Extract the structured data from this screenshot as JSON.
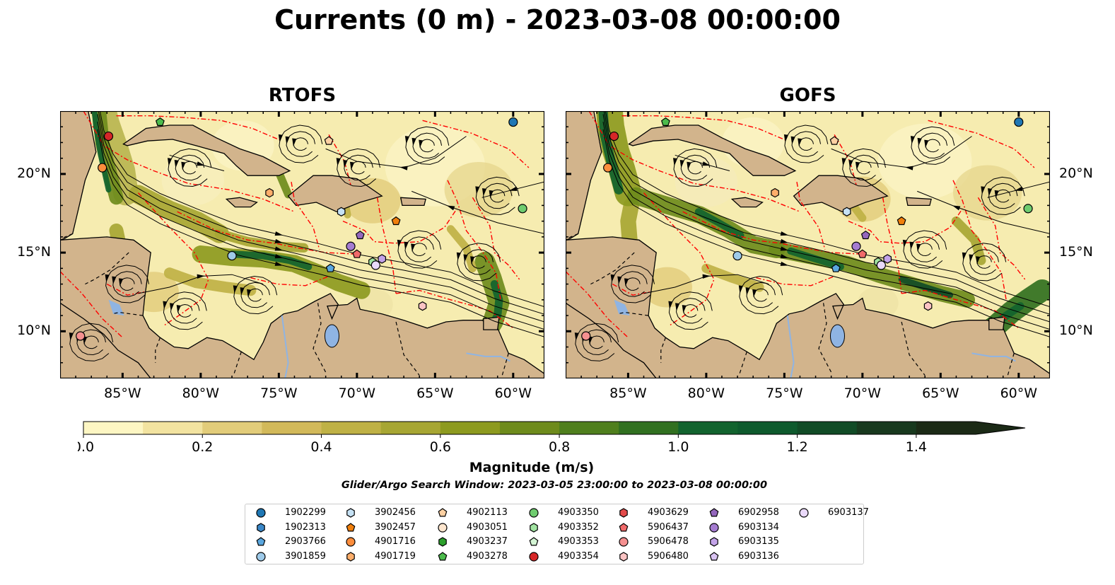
{
  "title": "Currents (0 m) - 2023-03-08 00:00:00",
  "panels": [
    {
      "title": "RTOFS"
    },
    {
      "title": "GOFS"
    }
  ],
  "map": {
    "lon_range": [
      -89,
      -58
    ],
    "lat_range": [
      7,
      24
    ],
    "lon_ticks": [
      {
        "value": -85,
        "label": "85°W"
      },
      {
        "value": -80,
        "label": "80°W"
      },
      {
        "value": -75,
        "label": "75°W"
      },
      {
        "value": -70,
        "label": "70°W"
      },
      {
        "value": -65,
        "label": "65°W"
      },
      {
        "value": -60,
        "label": "60°W"
      }
    ],
    "lat_ticks": [
      {
        "value": 20,
        "label": "20°N"
      },
      {
        "value": 15,
        "label": "15°N"
      },
      {
        "value": 10,
        "label": "10°N"
      }
    ],
    "colors": {
      "land": "#d2b48c",
      "eez": "#ff0000",
      "lake": "#8fb4e3",
      "water_low": "#fbf4c0",
      "water_high": "#1f3b17"
    }
  },
  "colorbar": {
    "label": "Magnitude (m/s)",
    "min": 0.0,
    "max": 1.5,
    "extend": "max",
    "tick_labels": [
      "0.0",
      "0.2",
      "0.4",
      "0.6",
      "0.8",
      "1.0",
      "1.2",
      "1.4"
    ],
    "tick_values": [
      0.0,
      0.2,
      0.4,
      0.6,
      0.8,
      1.0,
      1.2,
      1.4
    ],
    "colors": [
      "#fdf6c3",
      "#f2e3a0",
      "#e2cc7a",
      "#d2b95a",
      "#bfb145",
      "#a7a633",
      "#8d9a1f",
      "#6e8b1c",
      "#4f7f1d",
      "#317020",
      "#12632e",
      "#0e5a2d",
      "#114b26",
      "#18391e",
      "#1b2a16"
    ]
  },
  "search_window": "Glider/Argo Search Window: 2023-03-05 23:00:00 to 2023-03-08 00:00:00",
  "legend": [
    {
      "label": "1902299",
      "marker": "circle",
      "color": "#1f77b4"
    },
    {
      "label": "1902313",
      "marker": "hexagon",
      "color": "#3a87c8"
    },
    {
      "label": "2903766",
      "marker": "pentagon",
      "color": "#5aa7df"
    },
    {
      "label": "3901859",
      "marker": "circle",
      "color": "#9ecae9"
    },
    {
      "label": "3902456",
      "marker": "hexagon",
      "color": "#c6e2f5"
    },
    {
      "label": "3902457",
      "marker": "pentagon",
      "color": "#f07f0c"
    },
    {
      "label": "4901716",
      "marker": "circle",
      "color": "#fd8d3c"
    },
    {
      "label": "4901719",
      "marker": "hexagon",
      "color": "#fdae6b"
    },
    {
      "label": "4902113",
      "marker": "pentagon",
      "color": "#fdd0a2"
    },
    {
      "label": "4903051",
      "marker": "circle",
      "color": "#fee6ce"
    },
    {
      "label": "4903237",
      "marker": "hexagon",
      "color": "#2ca02c"
    },
    {
      "label": "4903278",
      "marker": "pentagon",
      "color": "#4cbb4c"
    },
    {
      "label": "4903350",
      "marker": "circle",
      "color": "#6fcc6f"
    },
    {
      "label": "4903352",
      "marker": "hexagon",
      "color": "#a1e3a1"
    },
    {
      "label": "4903353",
      "marker": "pentagon",
      "color": "#d4f5d4"
    },
    {
      "label": "4903354",
      "marker": "circle",
      "color": "#d62728"
    },
    {
      "label": "4903629",
      "marker": "hexagon",
      "color": "#e34a4a"
    },
    {
      "label": "5906437",
      "marker": "pentagon",
      "color": "#f06a6a"
    },
    {
      "label": "5906478",
      "marker": "circle",
      "color": "#f59090"
    },
    {
      "label": "5906480",
      "marker": "hexagon",
      "color": "#fbc3c3"
    },
    {
      "label": "6902958",
      "marker": "pentagon",
      "color": "#9467bd"
    },
    {
      "label": "6903134",
      "marker": "circle",
      "color": "#a57cd1"
    },
    {
      "label": "6903135",
      "marker": "hexagon",
      "color": "#c3a3e8"
    },
    {
      "label": "6903136",
      "marker": "pentagon",
      "color": "#d9c3f2"
    },
    {
      "label": "6903137",
      "marker": "circle",
      "color": "#ead9fa"
    }
  ],
  "platforms": [
    {
      "id": "1902299",
      "lon": -60.0,
      "lat": 23.3
    },
    {
      "id": "2903766",
      "lon": -71.7,
      "lat": 14.0
    },
    {
      "id": "3901859",
      "lon": -78.0,
      "lat": 14.8
    },
    {
      "id": "3902456",
      "lon": -71.0,
      "lat": 17.6
    },
    {
      "id": "3902457",
      "lon": -67.5,
      "lat": 17.0
    },
    {
      "id": "4901716",
      "lon": -86.3,
      "lat": 20.4
    },
    {
      "id": "4901719",
      "lon": -75.6,
      "lat": 18.8
    },
    {
      "id": "4902113",
      "lon": -71.8,
      "lat": 22.1
    },
    {
      "id": "4903278",
      "lon": -82.6,
      "lat": 23.3
    },
    {
      "id": "4903350",
      "lon": -59.4,
      "lat": 17.8
    },
    {
      "id": "4903352",
      "lon": -69.0,
      "lat": 14.4
    },
    {
      "id": "4903354",
      "lon": -85.9,
      "lat": 22.4
    },
    {
      "id": "5906437",
      "lon": -70.0,
      "lat": 14.9
    },
    {
      "id": "5906478",
      "lon": -87.7,
      "lat": 9.7
    },
    {
      "id": "5906480",
      "lon": -65.8,
      "lat": 11.6
    },
    {
      "id": "6902958",
      "lon": -69.8,
      "lat": 16.1
    },
    {
      "id": "6903134",
      "lon": -70.4,
      "lat": 15.4
    },
    {
      "id": "6903135",
      "lon": -68.4,
      "lat": 14.6
    },
    {
      "id": "6903137",
      "lon": -68.8,
      "lat": 14.2
    }
  ]
}
